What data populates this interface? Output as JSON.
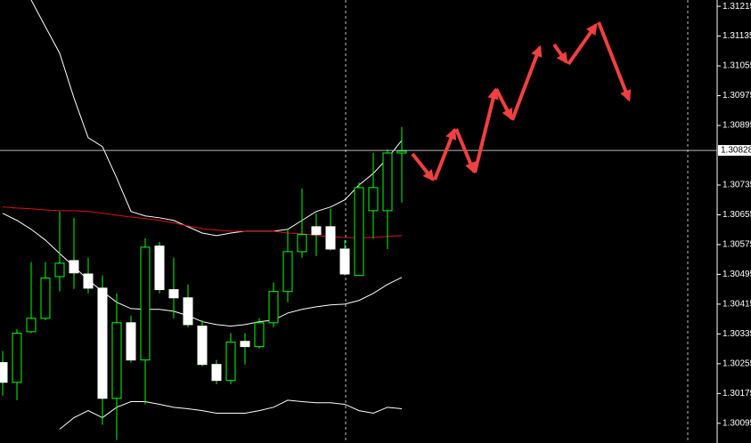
{
  "chart_data": {
    "type": "candlestick",
    "categories": [
      null,
      null,
      null,
      null,
      null,
      null,
      null,
      null,
      null,
      null,
      null,
      null,
      null,
      null,
      null,
      null,
      null,
      null,
      null,
      null,
      null,
      null,
      null,
      null,
      null,
      null,
      null,
      null,
      null
    ],
    "open": [
      1.30258,
      1.30205,
      1.30341,
      1.30377,
      1.30489,
      1.30532,
      1.30496,
      1.30458,
      1.30162,
      1.30365,
      1.30265,
      1.30571,
      1.30454,
      1.30432,
      1.30356,
      1.30253,
      1.3021,
      1.30315,
      1.30301,
      1.30365,
      1.30449,
      1.30556,
      1.30623,
      1.30623,
      1.30563,
      1.30492,
      1.30666,
      1.30666,
      1.30821
    ],
    "high": [
      1.30289,
      1.30348,
      1.30528,
      1.30528,
      1.30664,
      1.30647,
      1.3054,
      1.30492,
      1.30444,
      1.30384,
      1.30592,
      1.30582,
      1.3054,
      1.30468,
      1.30372,
      1.30265,
      1.30337,
      1.30337,
      1.30377,
      1.30473,
      1.30616,
      1.30726,
      1.30659,
      1.30671,
      1.30587,
      1.30742,
      1.30821,
      1.30831,
      1.30891
    ],
    "low": [
      1.30169,
      1.30157,
      1.30337,
      1.30372,
      1.30449,
      1.30456,
      1.30444,
      1.30091,
      1.3005,
      1.30258,
      1.30146,
      1.30444,
      1.30377,
      1.30353,
      1.30248,
      1.302,
      1.302,
      1.30253,
      1.30296,
      1.30353,
      1.3042,
      1.3054,
      1.30544,
      1.30559,
      1.30492,
      1.30492,
      1.30592,
      1.30563,
      1.30688
    ],
    "close": [
      1.30205,
      1.30337,
      1.30377,
      1.30485,
      1.30525,
      1.30499,
      1.30458,
      1.30162,
      1.30365,
      1.30265,
      1.30568,
      1.30454,
      1.30432,
      1.3036,
      1.30253,
      1.3021,
      1.30313,
      1.30301,
      1.30365,
      1.30449,
      1.30556,
      1.30602,
      1.30602,
      1.30563,
      1.30496,
      1.30728,
      1.30728,
      1.30821,
      1.30826
    ],
    "bull_color": "#00ff00",
    "bear_color": "#ffffff",
    "lines": [
      {
        "color": "#ffffff",
        "values": [
          null,
          null,
          1.31232,
          1.3116,
          1.31089,
          1.30969,
          1.30862,
          1.30838,
          1.30754,
          1.30664,
          1.30652,
          1.30647,
          1.3064,
          1.30623,
          1.30606,
          1.30599,
          1.30606,
          1.30611,
          1.30611,
          1.30611,
          1.30616,
          1.3064,
          1.30664,
          1.30676,
          1.30695,
          1.30735,
          1.30766,
          1.30807,
          1.30855
        ]
      },
      {
        "color": "#ffffff",
        "values": [
          1.30659,
          1.3064,
          1.30616,
          1.30587,
          1.30551,
          1.30516,
          1.3048,
          1.30449,
          1.3042,
          1.30403,
          1.30401,
          1.30401,
          1.30396,
          1.30384,
          1.30368,
          1.3036,
          1.30356,
          1.3036,
          1.30368,
          1.30372,
          1.30391,
          1.30401,
          1.30408,
          1.30413,
          1.30415,
          1.30425,
          1.30444,
          1.30468,
          1.30487
        ]
      },
      {
        "color": "#ffffff",
        "values": [
          null,
          null,
          null,
          null,
          1.30079,
          1.3011,
          1.30129,
          1.3011,
          1.30138,
          1.30153,
          1.30153,
          1.30146,
          1.30138,
          1.30134,
          1.30129,
          1.30122,
          1.30122,
          1.30122,
          1.30129,
          1.30138,
          1.30157,
          1.30153,
          1.3015,
          1.3015,
          1.30146,
          1.30129,
          1.30122,
          1.30138,
          1.30134
        ]
      },
      {
        "color": "#e01010",
        "values": [
          1.30676,
          1.30673,
          1.30671,
          1.30668,
          1.30666,
          1.30666,
          1.30664,
          1.30659,
          1.30654,
          1.30649,
          1.30645,
          1.3064,
          1.30633,
          1.30625,
          1.30618,
          1.30614,
          1.30611,
          1.30611,
          1.30611,
          1.30611,
          1.30606,
          1.30604,
          1.30599,
          1.30597,
          1.30594,
          1.30594,
          1.30594,
          1.30597,
          1.30599
        ]
      }
    ],
    "current_price": 1.30828,
    "ylim": [
      1.30042,
      1.31232
    ],
    "yticks": [
      1.31215,
      1.31135,
      1.31055,
      1.30975,
      1.30895,
      1.30735,
      1.30655,
      1.30575,
      1.30495,
      1.30415,
      1.30335,
      1.30255,
      1.30175,
      1.30095
    ]
  }
}
